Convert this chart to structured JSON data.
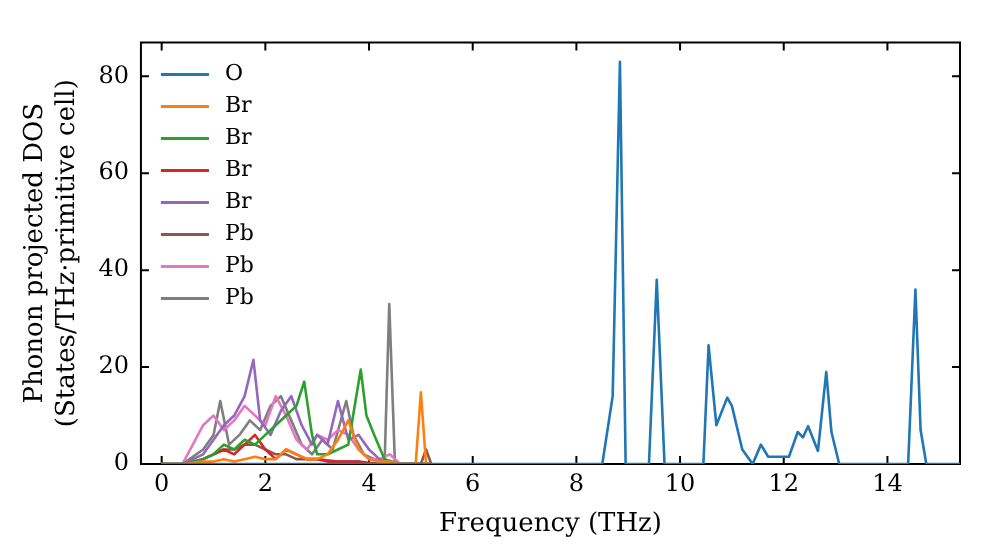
{
  "chart_data": {
    "type": "line",
    "xlabel": "Frequency (THz)",
    "ylabel": "Phonon projected DOS\n(States/THz·primitive cell)",
    "xlim": [
      -0.4,
      15.4
    ],
    "ylim": [
      0,
      87
    ],
    "xticks": [
      0,
      2,
      4,
      6,
      8,
      10,
      12,
      14
    ],
    "yticks": [
      0,
      20,
      40,
      60,
      80
    ],
    "legend": "top left",
    "grid": false,
    "marker": "none",
    "line_style": "solid",
    "series": [
      {
        "name": "O",
        "color": "#1f77b4",
        "x": [
          0,
          8.5,
          8.7,
          8.84,
          8.95,
          9.4,
          9.55,
          9.7,
          10.3,
          10.45,
          10.55,
          10.7,
          10.91,
          11.0,
          11.2,
          11.4,
          11.56,
          11.7,
          12.1,
          12.27,
          12.37,
          12.47,
          12.66,
          12.82,
          12.92,
          13.07,
          13.4,
          14.4,
          14.54,
          14.64,
          14.75,
          15.4
        ],
        "values": [
          0,
          0,
          14,
          83,
          0,
          0,
          38,
          0,
          0,
          0,
          24.5,
          8,
          13.7,
          12,
          3,
          0,
          4,
          1.5,
          1.5,
          6.6,
          5.5,
          7.8,
          2.7,
          19,
          6.6,
          0,
          0,
          0,
          36,
          7,
          0,
          0
        ]
      },
      {
        "name": "Br",
        "color": "#ff7f0e",
        "x": [
          0,
          0.4,
          0.8,
          1.0,
          1.2,
          1.4,
          1.6,
          1.8,
          2.0,
          2.2,
          2.4,
          2.6,
          2.8,
          3.0,
          3.2,
          3.4,
          3.6,
          3.8,
          4.0,
          4.2,
          4.4,
          4.6,
          4.9,
          5.0,
          5.1,
          5.2
        ],
        "values": [
          0,
          0,
          0.5,
          0.5,
          1,
          0.5,
          1,
          1.5,
          1,
          1,
          3,
          2,
          1,
          1,
          2,
          5,
          9,
          3,
          1,
          0.5,
          0.5,
          0,
          0,
          14.8,
          0,
          0
        ]
      },
      {
        "name": "Br",
        "color": "#2ca02c",
        "x": [
          0,
          0.4,
          0.8,
          1.0,
          1.2,
          1.4,
          1.6,
          1.8,
          2.0,
          2.2,
          2.4,
          2.6,
          2.75,
          2.9,
          3.0,
          3.2,
          3.4,
          3.6,
          3.84,
          3.95,
          4.1,
          4.3,
          4.6,
          5.2
        ],
        "values": [
          0,
          0,
          1,
          2,
          4,
          3,
          5,
          4,
          6,
          8,
          10,
          12,
          17,
          6,
          2,
          2,
          3,
          4,
          19.5,
          10,
          6,
          1,
          0,
          0
        ]
      },
      {
        "name": "Br",
        "color": "#d62728",
        "x": [
          0.8,
          1.0,
          1.2,
          1.4,
          1.6,
          1.8,
          2.0,
          2.2,
          2.4,
          2.6,
          2.8,
          3.0,
          3.2,
          3.4,
          3.6,
          3.8,
          4.0,
          4.4,
          5.2
        ],
        "values": [
          1,
          2,
          3,
          2,
          4,
          6,
          3,
          1,
          3,
          2,
          1,
          1,
          0.5,
          0.5,
          0.5,
          0.5,
          0,
          0,
          0
        ]
      },
      {
        "name": "Br",
        "color": "#9467bd",
        "x": [
          0,
          0.4,
          0.8,
          1.0,
          1.2,
          1.4,
          1.6,
          1.77,
          1.9,
          2.1,
          2.3,
          2.5,
          2.7,
          2.9,
          3.0,
          3.2,
          3.4,
          3.6,
          3.8,
          4.0,
          4.2,
          4.4,
          4.6,
          5.2
        ],
        "values": [
          0,
          0,
          2,
          5,
          8,
          10,
          14,
          21.5,
          9,
          6,
          11,
          14,
          8,
          4,
          6,
          4,
          13,
          5,
          6,
          3,
          1,
          0,
          0,
          0
        ]
      },
      {
        "name": "Pb",
        "color": "#8c564b",
        "x": [
          0,
          0.4,
          0.8,
          1.0,
          1.2,
          1.4,
          1.6,
          1.8,
          2.0,
          2.2,
          2.4,
          2.6,
          2.8,
          3.0,
          3.4,
          3.8,
          4.2,
          4.4,
          5.0,
          5.1,
          5.2
        ],
        "values": [
          0,
          0,
          1,
          2,
          3,
          3,
          4,
          4,
          3,
          2,
          2,
          1,
          1,
          1,
          0.5,
          0.5,
          0,
          0,
          0,
          3,
          0
        ]
      },
      {
        "name": "Pb",
        "color": "#e377c2",
        "x": [
          0,
          0.4,
          0.6,
          0.8,
          1.0,
          1.2,
          1.4,
          1.6,
          1.8,
          2.0,
          2.2,
          2.4,
          2.6,
          2.8,
          3.0,
          3.2,
          3.4,
          3.6,
          3.8,
          4.0,
          4.2,
          4.4,
          4.6,
          5.2
        ],
        "values": [
          0,
          0,
          4,
          8,
          10,
          7,
          9,
          12,
          10,
          8,
          14,
          10,
          5,
          3,
          6,
          5,
          7,
          6,
          3,
          1,
          1,
          2,
          0,
          0
        ]
      },
      {
        "name": "Pb",
        "color": "#7f7f7f",
        "x": [
          0,
          0.4,
          0.8,
          1.0,
          1.13,
          1.3,
          1.5,
          1.7,
          1.9,
          2.1,
          2.3,
          2.5,
          2.7,
          2.9,
          3.1,
          3.3,
          3.56,
          3.7,
          3.9,
          4.1,
          4.3,
          4.39,
          4.5,
          4.7,
          5.2
        ],
        "values": [
          0,
          0,
          3,
          6,
          13,
          4,
          6,
          9,
          7,
          12,
          14,
          9,
          4,
          2,
          5,
          3,
          13,
          6,
          2,
          1,
          0,
          33,
          0,
          0,
          0
        ]
      }
    ]
  }
}
